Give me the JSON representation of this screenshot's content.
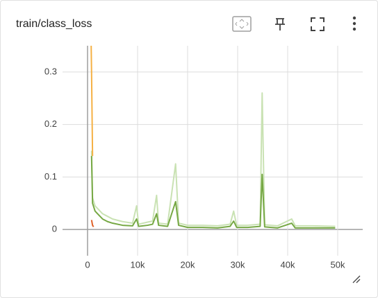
{
  "chart_data": {
    "type": "line",
    "title": "train/class_loss",
    "xlim": [
      -5000,
      55000
    ],
    "xticks": [
      0,
      {
        "value": 10000,
        "label": "10k"
      },
      {
        "value": 20000,
        "label": "20k"
      },
      {
        "value": 30000,
        "label": "30k"
      },
      {
        "value": 40000,
        "label": "40k"
      },
      {
        "value": 50000,
        "label": "50k"
      }
    ],
    "ylim": [
      -0.05,
      0.35
    ],
    "yticks": [
      0,
      0.1,
      0.2,
      0.3
    ],
    "grid": true,
    "series": [
      {
        "color": "#c9e2b3",
        "width": 2,
        "x": [
          800,
          1000,
          1500,
          2000,
          3000,
          4000,
          5000,
          7000,
          9000,
          9800,
          10200,
          12000,
          13000,
          13800,
          14200,
          16000,
          17600,
          18200,
          20000,
          23000,
          26000,
          28500,
          29200,
          29800,
          32000,
          34500,
          34900,
          35400,
          38000,
          40800,
          41500,
          45000,
          49500
        ],
        "values": [
          0.15,
          0.06,
          0.045,
          0.04,
          0.03,
          0.025,
          0.02,
          0.015,
          0.012,
          0.045,
          0.01,
          0.014,
          0.016,
          0.065,
          0.012,
          0.01,
          0.125,
          0.012,
          0.008,
          0.008,
          0.007,
          0.01,
          0.035,
          0.008,
          0.008,
          0.01,
          0.26,
          0.009,
          0.007,
          0.02,
          0.007,
          0.007,
          0.006
        ]
      },
      {
        "color": "#76a844",
        "width": 2,
        "x": [
          800,
          1000,
          1500,
          2000,
          3000,
          4000,
          5000,
          7000,
          9000,
          9800,
          10200,
          12000,
          13000,
          13800,
          14200,
          16000,
          17600,
          18200,
          20000,
          23000,
          26000,
          28500,
          29200,
          29800,
          32000,
          34500,
          34900,
          35400,
          38000,
          40800,
          41500,
          45000,
          49500
        ],
        "values": [
          0.14,
          0.05,
          0.035,
          0.03,
          0.02,
          0.015,
          0.012,
          0.008,
          0.007,
          0.02,
          0.006,
          0.008,
          0.01,
          0.03,
          0.008,
          0.006,
          0.053,
          0.008,
          0.004,
          0.004,
          0.003,
          0.006,
          0.016,
          0.004,
          0.004,
          0.006,
          0.105,
          0.005,
          0.003,
          0.012,
          0.003,
          0.003,
          0.003
        ]
      },
      {
        "color": "#f5b043",
        "width": 2,
        "x": [
          500,
          800,
          1000
        ],
        "values": [
          0.5,
          0.3,
          0.14
        ]
      },
      {
        "color": "#e0622a",
        "width": 2,
        "x": [
          800,
          1000,
          1200
        ],
        "values": [
          0.018,
          0.008,
          0.005
        ]
      }
    ]
  }
}
